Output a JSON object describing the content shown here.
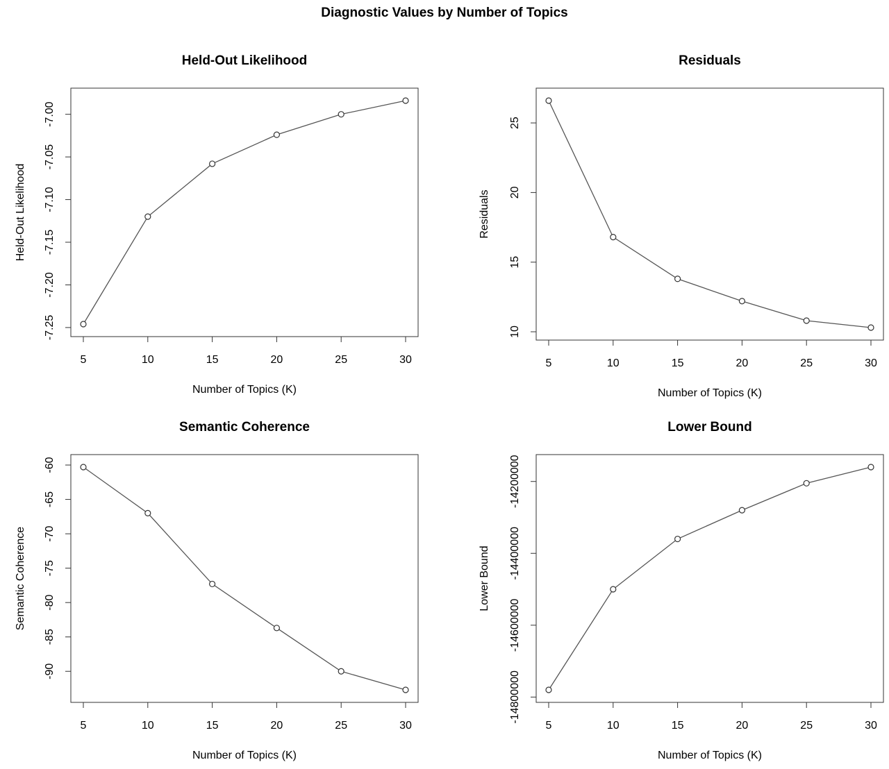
{
  "page_title": "Diagnostic Values by Number of Topics",
  "colors": {
    "line": "#555555",
    "axis": "#333333",
    "background": "#ffffff"
  },
  "chart_data": [
    {
      "type": "line",
      "title": "Held-Out Likelihood",
      "xlabel": "Number of Topics (K)",
      "ylabel": "Held-Out Likelihood",
      "x": [
        5,
        10,
        15,
        20,
        25,
        30
      ],
      "values": [
        -7.246,
        -7.12,
        -7.058,
        -7.024,
        -7.0,
        -6.984
      ],
      "xticks": [
        "5",
        "10",
        "15",
        "20",
        "25",
        "30"
      ],
      "yticks": [
        -7.25,
        -7.2,
        -7.15,
        -7.1,
        -7.05,
        -7.0
      ],
      "ytick_labels": [
        "-7.25",
        "-7.20",
        "-7.15",
        "-7.10",
        "-7.05",
        "-7.00"
      ],
      "xlim": [
        5,
        30
      ],
      "ylim": [
        -7.246,
        -6.984
      ],
      "marker": "open-circle",
      "grid": false
    },
    {
      "type": "line",
      "title": "Residuals",
      "xlabel": "Number of Topics (K)",
      "ylabel": "Residuals",
      "x": [
        5,
        10,
        15,
        20,
        25,
        30
      ],
      "values": [
        26.6,
        16.8,
        13.8,
        12.2,
        10.8,
        10.3
      ],
      "xticks": [
        "5",
        "10",
        "15",
        "20",
        "25",
        "30"
      ],
      "yticks": [
        10,
        15,
        20,
        25
      ],
      "ytick_labels": [
        "10",
        "15",
        "20",
        "25"
      ],
      "xlim": [
        5,
        30
      ],
      "ylim": [
        10.3,
        26.6
      ],
      "marker": "open-circle",
      "grid": false
    },
    {
      "type": "line",
      "title": "Semantic Coherence",
      "xlabel": "Number of Topics (K)",
      "ylabel": "Semantic Coherence",
      "x": [
        5,
        10,
        15,
        20,
        25,
        30
      ],
      "values": [
        -60.3,
        -67.0,
        -77.3,
        -83.7,
        -90.0,
        -92.7
      ],
      "xticks": [
        "5",
        "10",
        "15",
        "20",
        "25",
        "30"
      ],
      "yticks": [
        -90,
        -85,
        -80,
        -75,
        -70,
        -65,
        -60
      ],
      "ytick_labels": [
        "-90",
        "-85",
        "-80",
        "-75",
        "-70",
        "-65",
        "-60"
      ],
      "xlim": [
        5,
        30
      ],
      "ylim": [
        -92.7,
        -60.3
      ],
      "marker": "open-circle",
      "grid": false
    },
    {
      "type": "line",
      "title": "Lower Bound",
      "xlabel": "Number of Topics (K)",
      "ylabel": "Lower Bound",
      "x": [
        5,
        10,
        15,
        20,
        25,
        30
      ],
      "values": [
        -14780000,
        -14500000,
        -14360000,
        -14280000,
        -14205000,
        -14160000
      ],
      "xticks": [
        "5",
        "10",
        "15",
        "20",
        "25",
        "30"
      ],
      "yticks": [
        -14800000,
        -14600000,
        -14400000,
        -14200000
      ],
      "ytick_labels": [
        "-14800000",
        "-14600000",
        "-14400000",
        "-14200000"
      ],
      "xlim": [
        5,
        30
      ],
      "ylim": [
        -14780000,
        -14160000
      ],
      "marker": "open-circle",
      "grid": false
    }
  ]
}
